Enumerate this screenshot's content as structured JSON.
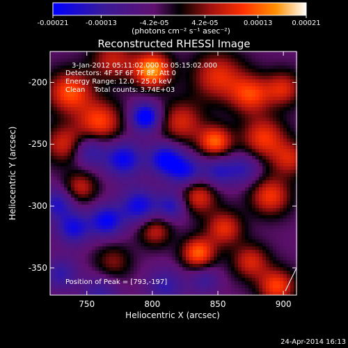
{
  "chart_data": {
    "type": "heatmap",
    "title": "Reconstructed RHESSI Image",
    "xlabel": "Heliocentric X (arcsec)",
    "ylabel": "Heliocentric Y (arcsec)",
    "xlim": [
      722,
      910
    ],
    "ylim": [
      -372,
      -175
    ],
    "x_ticks": [
      750,
      800,
      850,
      900
    ],
    "y_ticks": [
      -200,
      -250,
      -300,
      -350
    ],
    "colorbar": {
      "range": [
        -0.00021,
        0.00021
      ],
      "tick_values": [
        -0.00021,
        -0.00013,
        -4.2e-05,
        4.2e-05,
        0.00013,
        0.00021
      ],
      "tick_labels": [
        "-0.00021",
        "-0.00013",
        "-4.2e-05",
        "4.2e-05",
        "0.00013",
        "0.00021"
      ],
      "unit_label": "(photons cm⁻² s⁻¹ asec⁻²)",
      "colors": [
        "#0000ff",
        "#3a1a9a",
        "#601070",
        "#000000",
        "#a01010",
        "#ff3000",
        "#ff9000",
        "#ffffff"
      ]
    },
    "annotations": {
      "time_range": "3-Jan-2012 05:11:02.000 to 05:15:02.000",
      "detectors": "Detectors: 4F 5F 6F 7F 8F, Att 0",
      "energy": "Energy Range: 12.0 - 25.0 keV",
      "clean": "Clean    Total counts: 3.74E+03",
      "peak": "Position of Peak = [793,-197]"
    },
    "peak": {
      "x": 793,
      "y": -197
    },
    "blobs": [
      {
        "x": 800,
        "y": -190,
        "v": 0.00021,
        "s": 10
      },
      {
        "x": 737,
        "y": -208,
        "v": 0.00016,
        "s": 12
      },
      {
        "x": 770,
        "y": -182,
        "v": 0.00011,
        "s": 12
      },
      {
        "x": 850,
        "y": -195,
        "v": 0.00013,
        "s": 14
      },
      {
        "x": 875,
        "y": -210,
        "v": 0.00014,
        "s": 11
      },
      {
        "x": 900,
        "y": -205,
        "v": 0.00012,
        "s": 10
      },
      {
        "x": 760,
        "y": -232,
        "v": 0.00015,
        "s": 12
      },
      {
        "x": 733,
        "y": -250,
        "v": 0.00012,
        "s": 11
      },
      {
        "x": 822,
        "y": -232,
        "v": 0.00012,
        "s": 12
      },
      {
        "x": 848,
        "y": -248,
        "v": 0.00017,
        "s": 9
      },
      {
        "x": 885,
        "y": -245,
        "v": 0.00014,
        "s": 12
      },
      {
        "x": 905,
        "y": -262,
        "v": 0.00011,
        "s": 10
      },
      {
        "x": 745,
        "y": -285,
        "v": 0.00011,
        "s": 9
      },
      {
        "x": 835,
        "y": -292,
        "v": 0.00013,
        "s": 10
      },
      {
        "x": 890,
        "y": -292,
        "v": 0.00014,
        "s": 11
      },
      {
        "x": 802,
        "y": -320,
        "v": 0.00011,
        "s": 9
      },
      {
        "x": 855,
        "y": -318,
        "v": 0.00013,
        "s": 10
      },
      {
        "x": 835,
        "y": -338,
        "v": 0.00017,
        "s": 9
      },
      {
        "x": 875,
        "y": -345,
        "v": 0.00012,
        "s": 10
      },
      {
        "x": 770,
        "y": -345,
        "v": 8e-05,
        "s": 10
      },
      {
        "x": 895,
        "y": -365,
        "v": 0.00015,
        "s": 10
      },
      {
        "x": 795,
        "y": -228,
        "v": -0.0002,
        "s": 8
      },
      {
        "x": 778,
        "y": -262,
        "v": -0.00016,
        "s": 10
      },
      {
        "x": 810,
        "y": -262,
        "v": -0.00017,
        "s": 9
      },
      {
        "x": 752,
        "y": -255,
        "v": -0.00012,
        "s": 9
      },
      {
        "x": 790,
        "y": -300,
        "v": -0.00015,
        "s": 10
      },
      {
        "x": 765,
        "y": -312,
        "v": -0.00016,
        "s": 9
      },
      {
        "x": 740,
        "y": -318,
        "v": -0.00014,
        "s": 9
      },
      {
        "x": 728,
        "y": -298,
        "v": -0.00012,
        "s": 9
      },
      {
        "x": 825,
        "y": -272,
        "v": -0.00014,
        "s": 9
      },
      {
        "x": 850,
        "y": -272,
        "v": -0.00011,
        "s": 9
      },
      {
        "x": 870,
        "y": -270,
        "v": -0.0001,
        "s": 9
      },
      {
        "x": 815,
        "y": -300,
        "v": -0.00012,
        "s": 8
      },
      {
        "x": 760,
        "y": -370,
        "v": -9e-05,
        "s": 10
      },
      {
        "x": 810,
        "y": -365,
        "v": -0.0001,
        "s": 10
      },
      {
        "x": 730,
        "y": -355,
        "v": -0.0001,
        "s": 9
      },
      {
        "x": 840,
        "y": -360,
        "v": -8e-05,
        "s": 8
      }
    ]
  },
  "footer_date": "24-Apr-2014 16:13"
}
